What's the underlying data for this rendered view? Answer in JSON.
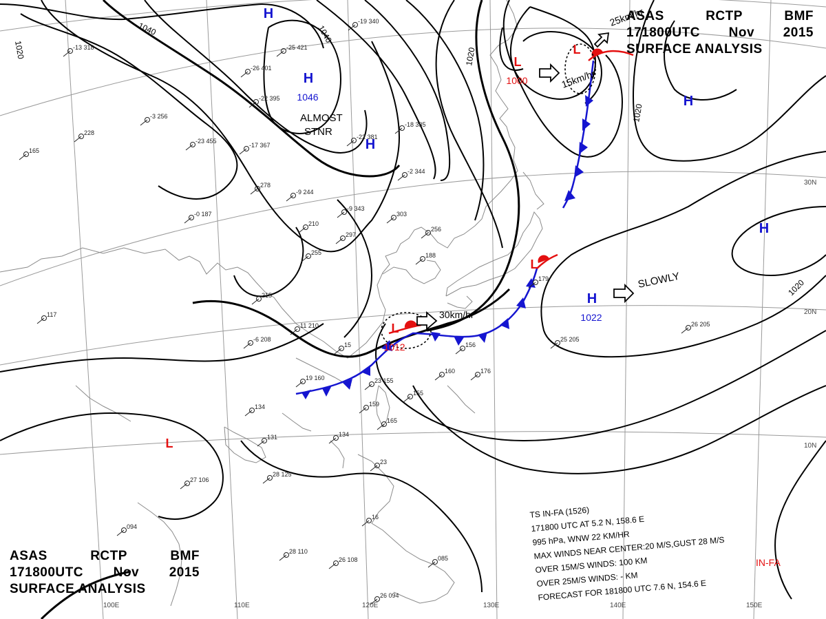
{
  "header": {
    "line1": [
      "ASAS",
      "RCTP",
      "BMF"
    ],
    "line2": [
      "171800UTC",
      "Nov",
      "2015"
    ],
    "line3": "SURFACE ANALYSIS"
  },
  "pressure_centers": [
    {
      "type": "H",
      "value": "1046"
    },
    {
      "type": "H",
      "value": ""
    },
    {
      "type": "H",
      "value": ""
    },
    {
      "type": "H",
      "value": ""
    },
    {
      "type": "H",
      "value": ""
    },
    {
      "type": "H",
      "value": "1022"
    },
    {
      "type": "L",
      "value": "1000"
    },
    {
      "type": "L",
      "value": ""
    },
    {
      "type": "L",
      "value": "1012"
    },
    {
      "type": "L",
      "value": ""
    },
    {
      "type": "L",
      "value": ""
    }
  ],
  "isobar_labels": [
    "1040",
    "1040",
    "1020",
    "1020",
    "1020",
    "1020"
  ],
  "motion_labels": {
    "almost": "ALMOST",
    "stnr": "STNR",
    "slowly": "SLOWLY",
    "speed_30": "30km/hr",
    "speed_15": "15km/hr",
    "speed_25": "25km/hr"
  },
  "lat_labels": [
    "30N",
    "20N",
    "10N"
  ],
  "lon_labels": [
    "100E",
    "110E",
    "120E",
    "130E",
    "140E",
    "150E"
  ],
  "storm_info": {
    "lines": [
      "TS  IN-FA  (1526)",
      "171800 UTC  AT 5.2 N, 158.6 E",
      "995 hPa, WNW  22 KM/HR",
      "MAX WINDS NEAR CENTER:20 M/S,GUST 28 M/S",
      "OVER 15M/S WINDS: 100 KM",
      "OVER 25M/S WINDS: - KM",
      "FORECAST FOR 181800 UTC 7.6 N, 154.6 E"
    ],
    "name": "IN-FA"
  },
  "station_values": [
    "-25 421",
    "-26 401",
    "-22 395",
    "-19 340",
    "-13 318",
    "-3 256",
    "228",
    "165",
    "-23 455",
    "-17 367",
    "-18 335",
    "-22 381",
    "-2 344",
    "278",
    "-9 244",
    "-0 187",
    "-9 343",
    "303",
    "210",
    "297",
    "256",
    "188",
    "215",
    "117",
    "255",
    "-6 208",
    "11 210",
    "15",
    "19 160",
    "23 155",
    "159",
    "165",
    "134",
    "131",
    "134",
    "156",
    "160",
    "176",
    "155",
    "25 205",
    "26 205",
    "27 106",
    "28 125",
    "23",
    "16",
    "094",
    "28 110",
    "26 108",
    "085",
    "26 094",
    "179"
  ],
  "colors": {
    "high": "#1515d0",
    "low": "#e41010",
    "cold_front": "#1515d0",
    "warm_front": "#e41010",
    "isobar": "#000000",
    "graticule": "#999999",
    "coast": "#8a8a8a"
  }
}
